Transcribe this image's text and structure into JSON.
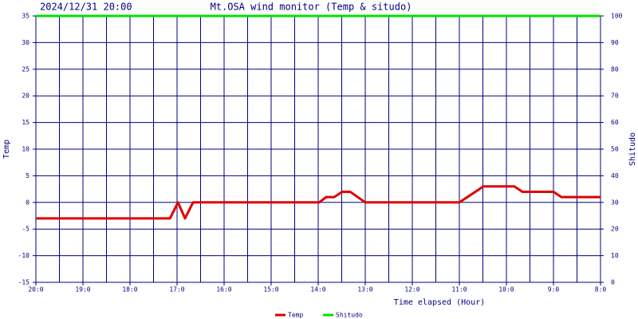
{
  "chart_data": {
    "type": "line",
    "timestamp": "2024/12/31 20:00",
    "title": "Mt.OSA wind monitor (Temp & situdo)",
    "xlabel": "Time elapsed (Hour)",
    "ylabel": "Temp",
    "y2label": "Shitudo",
    "xlim": [
      0,
      12
    ],
    "xticks": [
      {
        "value": 0,
        "label": "20:0"
      },
      {
        "value": 1,
        "label": "19:0"
      },
      {
        "value": 2,
        "label": "18:0"
      },
      {
        "value": 3,
        "label": "17:0"
      },
      {
        "value": 4,
        "label": "16:0"
      },
      {
        "value": 5,
        "label": "15:0"
      },
      {
        "value": 6,
        "label": "14:0"
      },
      {
        "value": 7,
        "label": "13:0"
      },
      {
        "value": 8,
        "label": "12:0"
      },
      {
        "value": 9,
        "label": "11:0"
      },
      {
        "value": 10,
        "label": "10:0"
      },
      {
        "value": 11,
        "label": "9:0"
      },
      {
        "value": 12,
        "label": "8:0"
      }
    ],
    "xgrid": [
      0,
      0.5,
      1,
      1.5,
      2,
      2.5,
      3,
      3.5,
      4,
      4.5,
      5,
      5.5,
      6,
      6.5,
      7,
      7.5,
      8,
      8.5,
      9,
      9.5,
      10,
      10.5,
      11,
      11.5,
      12
    ],
    "ylim": [
      -15,
      35
    ],
    "yticks": [
      -15,
      -10,
      -5,
      0,
      5,
      10,
      15,
      20,
      25,
      30,
      35
    ],
    "y2lim": [
      0,
      100
    ],
    "y2ticks": [
      0,
      10,
      20,
      30,
      40,
      50,
      60,
      70,
      80,
      90,
      100
    ],
    "grid": true,
    "legend": "bottom",
    "series": [
      {
        "name": "Temp",
        "color": "#e00000",
        "x": [
          0,
          2.85,
          3.02,
          3.17,
          3.34,
          6.02,
          6.17,
          6.34,
          6.51,
          6.68,
          7.0,
          9.0,
          9.34,
          9.51,
          10.17,
          10.34,
          11.0,
          11.17,
          12
        ],
        "values": [
          -3,
          -3,
          0,
          -3,
          0,
          0,
          1,
          1,
          2,
          2,
          0,
          0,
          2,
          3,
          3,
          2,
          2,
          1,
          1
        ]
      },
      {
        "name": "Shitudo",
        "color": "#00e000",
        "axis": "y2",
        "x": [
          0,
          12
        ],
        "values": [
          100,
          100
        ]
      }
    ]
  }
}
